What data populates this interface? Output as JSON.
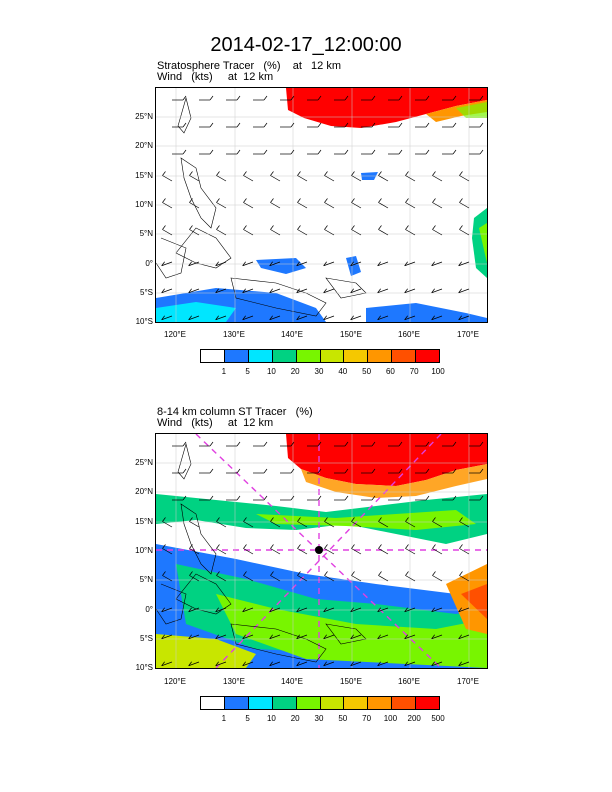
{
  "title": "2014-02-17_12:00:00",
  "panels": [
    {
      "line1": "Stratosphere Tracer   (%)    at   12 km",
      "line2": "Wind   (kts)     at  12 km",
      "colorbar_labels": [
        "1",
        "5",
        "10",
        "20",
        "30",
        "40",
        "50",
        "60",
        "70",
        "100"
      ],
      "colors": [
        "#ffffff",
        "#1e78ff",
        "#00e6ff",
        "#00d282",
        "#78f500",
        "#c8e600",
        "#f5c800",
        "#ff9600",
        "#ff5000",
        "#ff0000"
      ]
    },
    {
      "line1": "8-14 km column ST Tracer   (%)",
      "line2": "Wind   (kts)     at  12 km",
      "colorbar_labels": [
        "1",
        "5",
        "10",
        "20",
        "30",
        "50",
        "70",
        "100",
        "200",
        "500"
      ],
      "colors": [
        "#ffffff",
        "#1e78ff",
        "#00e6ff",
        "#00d282",
        "#78f500",
        "#c8e600",
        "#f5c800",
        "#ff9600",
        "#ff5000",
        "#ff0000"
      ]
    }
  ],
  "lat_labels": [
    "25°N",
    "20°N",
    "15°N",
    "10°N",
    "5°N",
    "0°",
    "5°S",
    "10°S"
  ],
  "lon_labels": [
    "120°E",
    "130°E",
    "140°E",
    "150°E",
    "160°E",
    "170°E"
  ]
}
